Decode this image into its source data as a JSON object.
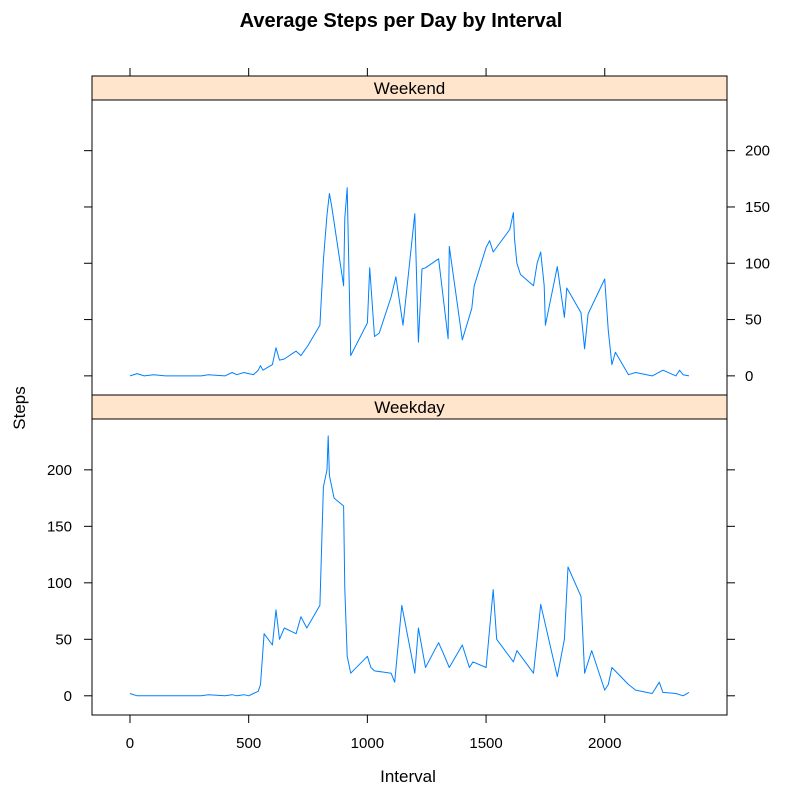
{
  "chart_data": {
    "type": "line",
    "title": "Average Steps per Day by Interval",
    "xlabel": "Interval",
    "ylabel": "Steps",
    "xlim": [
      -160,
      2515
    ],
    "ylim": [
      -17,
      245
    ],
    "x_ticks": [
      0,
      500,
      1000,
      1500,
      2000
    ],
    "y_ticks": [
      0,
      50,
      100,
      150,
      200
    ],
    "grid": false,
    "layout": "lattice panels stacked vertically with shared axes",
    "colors": {
      "line": "#0080ff",
      "strip": "#ffe5cc"
    },
    "panels": [
      {
        "name": "Weekend",
        "x": [
          0,
          30,
          60,
          100,
          150,
          200,
          250,
          300,
          330,
          400,
          430,
          450,
          480,
          500,
          520,
          540,
          550,
          560,
          600,
          615,
          630,
          650,
          700,
          720,
          750,
          800,
          815,
          830,
          840,
          850,
          900,
          905,
          915,
          930,
          1000,
          1010,
          1030,
          1050,
          1100,
          1120,
          1150,
          1200,
          1215,
          1230,
          1245,
          1300,
          1340,
          1345,
          1400,
          1440,
          1450,
          1500,
          1515,
          1530,
          1600,
          1615,
          1620,
          1630,
          1645,
          1700,
          1715,
          1730,
          1745,
          1750,
          1800,
          1830,
          1840,
          1900,
          1915,
          1930,
          2000,
          2015,
          2030,
          2045,
          2100,
          2130,
          2200,
          2245,
          2300,
          2315,
          2330,
          2355
        ],
        "y": [
          0,
          2,
          0,
          1,
          0,
          0,
          0,
          0,
          1,
          0,
          3,
          1,
          3,
          2,
          1,
          5,
          9,
          5,
          10,
          25,
          14,
          15,
          22,
          18,
          27,
          45,
          103,
          143,
          162,
          150,
          80,
          140,
          167,
          18,
          47,
          96,
          35,
          38,
          70,
          88,
          45,
          144,
          30,
          95,
          96,
          104,
          33,
          115,
          32,
          60,
          80,
          114,
          120,
          110,
          130,
          145,
          122,
          100,
          90,
          80,
          100,
          110,
          80,
          45,
          97,
          52,
          78,
          56,
          24,
          55,
          86,
          40,
          10,
          21,
          1,
          3,
          0,
          5,
          0,
          5,
          1,
          0
        ]
      },
      {
        "name": "Weekday",
        "x": [
          0,
          30,
          60,
          100,
          150,
          200,
          250,
          300,
          330,
          400,
          430,
          450,
          480,
          500,
          520,
          540,
          550,
          565,
          600,
          615,
          630,
          650,
          700,
          720,
          745,
          800,
          815,
          830,
          835,
          840,
          860,
          900,
          905,
          915,
          930,
          1000,
          1015,
          1030,
          1100,
          1115,
          1145,
          1200,
          1215,
          1245,
          1300,
          1315,
          1345,
          1400,
          1430,
          1445,
          1500,
          1530,
          1545,
          1615,
          1630,
          1700,
          1715,
          1730,
          1800,
          1830,
          1845,
          1900,
          1915,
          1945,
          2000,
          2015,
          2030,
          2100,
          2130,
          2200,
          2230,
          2245,
          2300,
          2330,
          2355
        ],
        "y": [
          2,
          0,
          0,
          0,
          0,
          0,
          0,
          0,
          1,
          0,
          1,
          0,
          1,
          0,
          2,
          4,
          10,
          55,
          45,
          76,
          50,
          60,
          55,
          70,
          60,
          80,
          185,
          200,
          230,
          195,
          175,
          168,
          95,
          35,
          20,
          35,
          25,
          22,
          20,
          12,
          80,
          20,
          60,
          25,
          47,
          40,
          25,
          45,
          25,
          30,
          25,
          94,
          50,
          30,
          40,
          20,
          50,
          81,
          17,
          50,
          114,
          88,
          20,
          40,
          5,
          10,
          25,
          10,
          5,
          2,
          12,
          3,
          2,
          0,
          3
        ]
      }
    ]
  }
}
